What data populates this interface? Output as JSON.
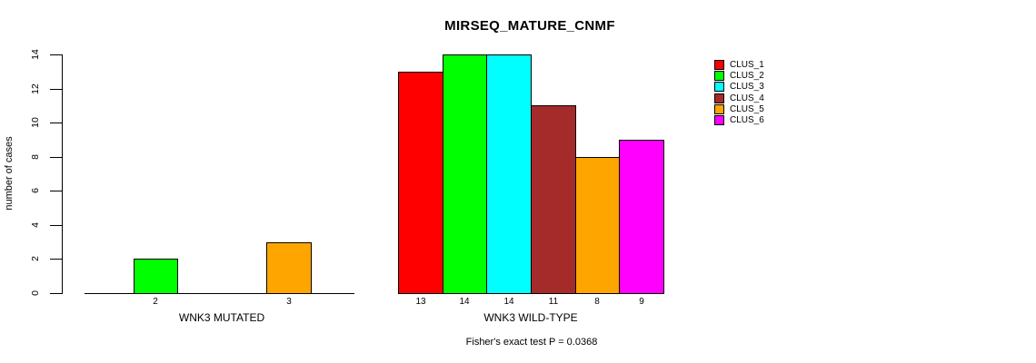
{
  "chart_data": {
    "type": "bar",
    "title": "MIRSEQ_MATURE_CNMF",
    "ylabel": "number of cases",
    "ylim": [
      0,
      14
    ],
    "yticks": [
      0,
      2,
      4,
      6,
      8,
      10,
      12,
      14
    ],
    "grid": false,
    "legend_position": "right",
    "clusters": [
      {
        "name": "CLUS_1",
        "color": "#FF0000"
      },
      {
        "name": "CLUS_2",
        "color": "#00FF00"
      },
      {
        "name": "CLUS_3",
        "color": "#00FFFF"
      },
      {
        "name": "CLUS_4",
        "color": "#A52A2A"
      },
      {
        "name": "CLUS_5",
        "color": "#FFA500"
      },
      {
        "name": "CLUS_6",
        "color": "#FF00FF"
      }
    ],
    "groups": [
      {
        "label": "WNK3 MUTATED",
        "values": [
          0,
          2,
          0,
          0,
          3,
          0
        ],
        "bar_labels": [
          "",
          "2",
          "",
          "",
          "3",
          ""
        ]
      },
      {
        "label": "WNK3 WILD-TYPE",
        "values": [
          13,
          14,
          14,
          11,
          8,
          9
        ],
        "bar_labels": [
          "13",
          "14",
          "14",
          "11",
          "8",
          "9"
        ]
      }
    ],
    "annotation": "Fisher's exact test P = 0.0368"
  }
}
